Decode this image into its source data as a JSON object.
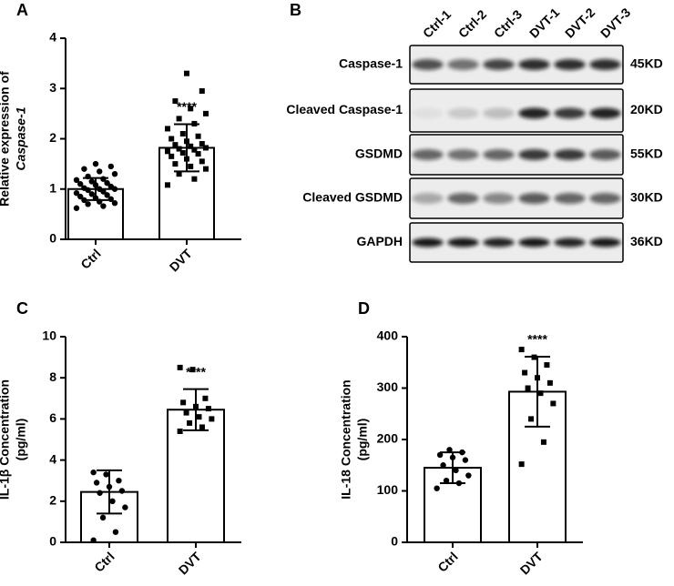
{
  "chart_data": [
    {
      "type": "bar",
      "panel": "A",
      "ylabel": "Relative expression of",
      "ylabel_italic": "Caspase-1",
      "categories": [
        "Ctrl",
        "DVT"
      ],
      "values": [
        1.0,
        1.82
      ],
      "errors": [
        0.22,
        0.47
      ],
      "points": [
        [
          0.62,
          0.66,
          0.7,
          0.72,
          0.75,
          0.78,
          0.8,
          0.82,
          0.85,
          0.88,
          0.9,
          0.92,
          0.95,
          0.98,
          1.0,
          1.0,
          1.02,
          1.05,
          1.08,
          1.1,
          1.12,
          1.15,
          1.18,
          1.2,
          1.25,
          1.3,
          1.35,
          1.4,
          1.45,
          1.5
        ],
        [
          1.08,
          1.2,
          1.3,
          1.4,
          1.45,
          1.5,
          1.55,
          1.6,
          1.65,
          1.7,
          1.72,
          1.75,
          1.78,
          1.8,
          1.82,
          1.85,
          1.88,
          1.9,
          1.95,
          2.0,
          2.05,
          2.1,
          2.2,
          2.3,
          2.4,
          2.5,
          2.6,
          2.75,
          2.95,
          3.3
        ]
      ],
      "annotation": "****",
      "color": "#ffffff",
      "ylim": [
        0,
        4
      ],
      "yticks": [
        0,
        1,
        2,
        3,
        4
      ]
    },
    {
      "type": "bar",
      "panel": "C",
      "ylabel": "IL-1β Concentration",
      "ylabel2": "(pg/ml)",
      "categories": [
        "Ctrl",
        "DVT"
      ],
      "values": [
        2.45,
        6.45
      ],
      "errors": [
        1.05,
        1.0
      ],
      "points": [
        [
          0.1,
          0.5,
          1.2,
          1.7,
          2.0,
          2.4,
          2.5,
          2.7,
          2.9,
          3.0,
          3.3,
          3.4
        ],
        [
          5.4,
          5.6,
          5.8,
          6.0,
          6.1,
          6.3,
          6.5,
          6.6,
          6.8,
          7.0,
          8.4,
          8.5
        ]
      ],
      "annotation": "****",
      "color": "#ffffff",
      "ylim": [
        0,
        10
      ],
      "yticks": [
        0,
        2,
        4,
        6,
        8,
        10
      ]
    },
    {
      "type": "bar",
      "panel": "D",
      "ylabel": "IL-18 Concentration",
      "ylabel2": "(pg/ml)",
      "categories": [
        "Ctrl",
        "DVT"
      ],
      "values": [
        145,
        293
      ],
      "errors": [
        30,
        68
      ],
      "points": [
        [
          105,
          115,
          120,
          130,
          140,
          150,
          160,
          165,
          170,
          175,
          180
        ],
        [
          152,
          195,
          240,
          270,
          290,
          300,
          310,
          320,
          330,
          345,
          360,
          375
        ]
      ],
      "annotation": "****",
      "color": "#ffffff",
      "ylim": [
        0,
        400
      ],
      "yticks": [
        0,
        100,
        200,
        300,
        400
      ]
    }
  ],
  "blot": {
    "panel": "B",
    "lanes": [
      "Ctrl-1",
      "Ctrl-2",
      "Ctrl-3",
      "DVT-1",
      "DVT-2",
      "DVT-3"
    ],
    "rows": [
      {
        "label": "Caspase-1",
        "size": "45KD"
      },
      {
        "label": "Cleaved Caspase-1",
        "size": "20KD"
      },
      {
        "label": "GSDMD",
        "size": "55KD"
      },
      {
        "label": "Cleaved GSDMD",
        "size": "30KD"
      },
      {
        "label": "GAPDH",
        "size": "36KD"
      }
    ]
  }
}
